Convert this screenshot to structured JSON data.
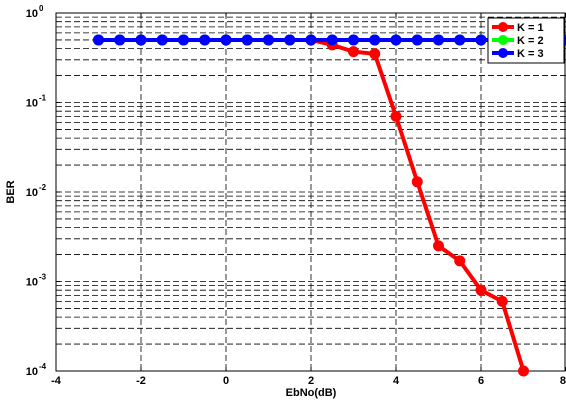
{
  "chart_data": {
    "type": "line",
    "xlabel": "EbNo(dB)",
    "ylabel": "BER",
    "yscale": "log",
    "xlim": [
      -4,
      8
    ],
    "ylim": [
      0.0001,
      1
    ],
    "x_ticks": [
      "-4",
      "-2",
      "0",
      "2",
      "4",
      "6",
      "8"
    ],
    "y_ticks": [
      {
        "base": "10",
        "exp": "-4"
      },
      {
        "base": "10",
        "exp": "-3"
      },
      {
        "base": "10",
        "exp": "-2"
      },
      {
        "base": "10",
        "exp": "-1"
      },
      {
        "base": "10",
        "exp": "0"
      }
    ],
    "grid": true,
    "legend_position": "top-right",
    "x": [
      -3,
      -2.5,
      -2,
      -1.5,
      -1,
      -0.5,
      0,
      0.5,
      1,
      1.5,
      2,
      2.5,
      3,
      3.5,
      4,
      4.5,
      5,
      5.5,
      6,
      6.5,
      7,
      7.5,
      8
    ],
    "series": [
      {
        "name": "K = 1",
        "color": "#ff0000",
        "values": [
          0.5,
          0.5,
          0.5,
          0.5,
          0.5,
          0.5,
          0.5,
          0.5,
          0.5,
          0.5,
          0.5,
          0.44,
          0.37,
          0.35,
          0.07,
          0.013,
          0.0025,
          0.0017,
          0.0008,
          0.0006,
          0.0001,
          null,
          null
        ]
      },
      {
        "name": "K = 2",
        "color": "#00ff00",
        "values": [
          0.5,
          0.5,
          0.5,
          0.5,
          0.5,
          0.5,
          0.5,
          0.5,
          0.5,
          0.5,
          0.5,
          0.5,
          0.5,
          0.5,
          0.5,
          0.5,
          0.5,
          0.5,
          0.5,
          0.5,
          0.5,
          0.5,
          0.5
        ]
      },
      {
        "name": "K = 3",
        "color": "#0000ff",
        "values": [
          0.5,
          0.5,
          0.5,
          0.5,
          0.5,
          0.5,
          0.5,
          0.5,
          0.5,
          0.5,
          0.5,
          0.5,
          0.5,
          0.5,
          0.5,
          0.5,
          0.5,
          0.5,
          0.5,
          0.5,
          0.5,
          0.5,
          0.5
        ]
      }
    ]
  }
}
